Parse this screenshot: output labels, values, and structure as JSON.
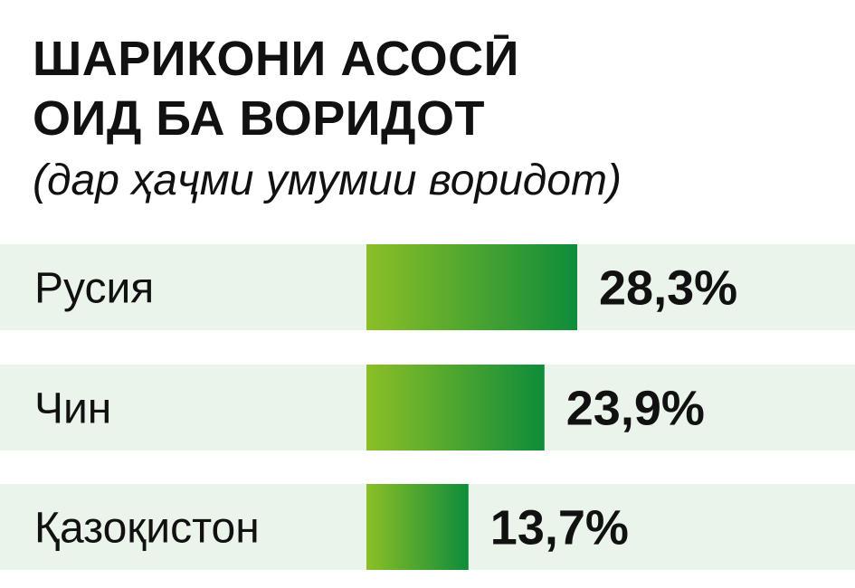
{
  "header": {
    "title_line1": "ШАРИКОНИ АСОСӢ",
    "title_line2": "ОИД БА ВОРИДОТ",
    "subtitle": "(дар ҳаҷми умумии воридот)"
  },
  "chart_data": {
    "type": "bar",
    "orientation": "horizontal",
    "categories": [
      "Русия",
      "Чин",
      "Қазоқистон"
    ],
    "values": [
      28.3,
      23.9,
      13.7
    ],
    "value_labels": [
      "28,3%",
      "23,9%",
      "13,7%"
    ],
    "unit": "%",
    "grid": false,
    "legend": "none"
  },
  "colors": {
    "bar_start": "#8cbf26",
    "bar_end": "#0e8c3a",
    "row_background": "#eaf4ea",
    "text": "#111111"
  }
}
